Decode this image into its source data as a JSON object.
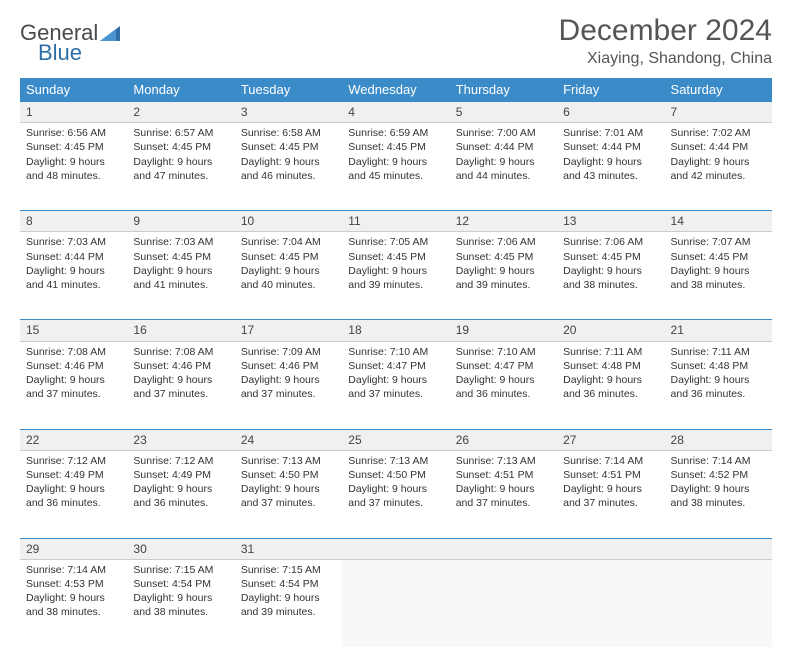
{
  "logo": {
    "text1": "General",
    "text2": "Blue"
  },
  "title": "December 2024",
  "location": "Xiaying, Shandong, China",
  "colors": {
    "header_bg": "#3b8bc9",
    "header_text": "#ffffff",
    "daynum_bg": "#eef0f1",
    "grid_line": "#3b8bc9",
    "text": "#333333"
  },
  "weekdays": [
    "Sunday",
    "Monday",
    "Tuesday",
    "Wednesday",
    "Thursday",
    "Friday",
    "Saturday"
  ],
  "weeks": [
    [
      {
        "n": "1",
        "sr": "6:56 AM",
        "ss": "4:45 PM",
        "dh": "9",
        "dm": "48"
      },
      {
        "n": "2",
        "sr": "6:57 AM",
        "ss": "4:45 PM",
        "dh": "9",
        "dm": "47"
      },
      {
        "n": "3",
        "sr": "6:58 AM",
        "ss": "4:45 PM",
        "dh": "9",
        "dm": "46"
      },
      {
        "n": "4",
        "sr": "6:59 AM",
        "ss": "4:45 PM",
        "dh": "9",
        "dm": "45"
      },
      {
        "n": "5",
        "sr": "7:00 AM",
        "ss": "4:44 PM",
        "dh": "9",
        "dm": "44"
      },
      {
        "n": "6",
        "sr": "7:01 AM",
        "ss": "4:44 PM",
        "dh": "9",
        "dm": "43"
      },
      {
        "n": "7",
        "sr": "7:02 AM",
        "ss": "4:44 PM",
        "dh": "9",
        "dm": "42"
      }
    ],
    [
      {
        "n": "8",
        "sr": "7:03 AM",
        "ss": "4:44 PM",
        "dh": "9",
        "dm": "41"
      },
      {
        "n": "9",
        "sr": "7:03 AM",
        "ss": "4:45 PM",
        "dh": "9",
        "dm": "41"
      },
      {
        "n": "10",
        "sr": "7:04 AM",
        "ss": "4:45 PM",
        "dh": "9",
        "dm": "40"
      },
      {
        "n": "11",
        "sr": "7:05 AM",
        "ss": "4:45 PM",
        "dh": "9",
        "dm": "39"
      },
      {
        "n": "12",
        "sr": "7:06 AM",
        "ss": "4:45 PM",
        "dh": "9",
        "dm": "39"
      },
      {
        "n": "13",
        "sr": "7:06 AM",
        "ss": "4:45 PM",
        "dh": "9",
        "dm": "38"
      },
      {
        "n": "14",
        "sr": "7:07 AM",
        "ss": "4:45 PM",
        "dh": "9",
        "dm": "38"
      }
    ],
    [
      {
        "n": "15",
        "sr": "7:08 AM",
        "ss": "4:46 PM",
        "dh": "9",
        "dm": "37"
      },
      {
        "n": "16",
        "sr": "7:08 AM",
        "ss": "4:46 PM",
        "dh": "9",
        "dm": "37"
      },
      {
        "n": "17",
        "sr": "7:09 AM",
        "ss": "4:46 PM",
        "dh": "9",
        "dm": "37"
      },
      {
        "n": "18",
        "sr": "7:10 AM",
        "ss": "4:47 PM",
        "dh": "9",
        "dm": "37"
      },
      {
        "n": "19",
        "sr": "7:10 AM",
        "ss": "4:47 PM",
        "dh": "9",
        "dm": "36"
      },
      {
        "n": "20",
        "sr": "7:11 AM",
        "ss": "4:48 PM",
        "dh": "9",
        "dm": "36"
      },
      {
        "n": "21",
        "sr": "7:11 AM",
        "ss": "4:48 PM",
        "dh": "9",
        "dm": "36"
      }
    ],
    [
      {
        "n": "22",
        "sr": "7:12 AM",
        "ss": "4:49 PM",
        "dh": "9",
        "dm": "36"
      },
      {
        "n": "23",
        "sr": "7:12 AM",
        "ss": "4:49 PM",
        "dh": "9",
        "dm": "36"
      },
      {
        "n": "24",
        "sr": "7:13 AM",
        "ss": "4:50 PM",
        "dh": "9",
        "dm": "37"
      },
      {
        "n": "25",
        "sr": "7:13 AM",
        "ss": "4:50 PM",
        "dh": "9",
        "dm": "37"
      },
      {
        "n": "26",
        "sr": "7:13 AM",
        "ss": "4:51 PM",
        "dh": "9",
        "dm": "37"
      },
      {
        "n": "27",
        "sr": "7:14 AM",
        "ss": "4:51 PM",
        "dh": "9",
        "dm": "37"
      },
      {
        "n": "28",
        "sr": "7:14 AM",
        "ss": "4:52 PM",
        "dh": "9",
        "dm": "38"
      }
    ],
    [
      {
        "n": "29",
        "sr": "7:14 AM",
        "ss": "4:53 PM",
        "dh": "9",
        "dm": "38"
      },
      {
        "n": "30",
        "sr": "7:15 AM",
        "ss": "4:54 PM",
        "dh": "9",
        "dm": "38"
      },
      {
        "n": "31",
        "sr": "7:15 AM",
        "ss": "4:54 PM",
        "dh": "9",
        "dm": "39"
      },
      null,
      null,
      null,
      null
    ]
  ],
  "labels": {
    "sunrise": "Sunrise:",
    "sunset": "Sunset:",
    "daylight_prefix": "Daylight:",
    "hours": "hours",
    "and": "and",
    "minutes": "minutes."
  }
}
